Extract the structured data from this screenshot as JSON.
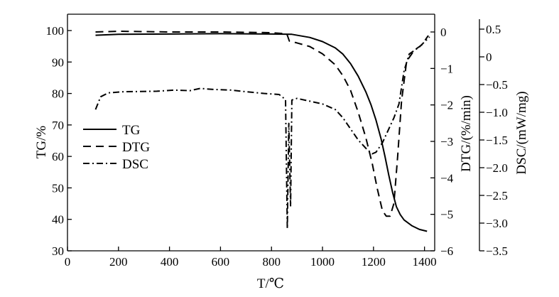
{
  "chart_data": {
    "type": "line",
    "title": "",
    "xlabel": "T/℃",
    "xlim": [
      0,
      1440
    ],
    "xticks": [
      0,
      200,
      400,
      600,
      800,
      1000,
      1200,
      1400
    ],
    "left_axis": {
      "label": "TG/%",
      "lim": [
        30,
        103
      ],
      "ticks": [
        30,
        40,
        50,
        60,
        70,
        80,
        90,
        100
      ]
    },
    "middle_axis": {
      "label": "DTG/(%/min)",
      "lim": [
        -6,
        0.5
      ],
      "ticks": [
        "0",
        "−1",
        "−2",
        "−3",
        "−4",
        "−5",
        "−6"
      ]
    },
    "right_axis": {
      "label": "DSC/(mW/mg)",
      "lim": [
        -3.5,
        0.7
      ],
      "ticks": [
        "0.5",
        "0",
        "−0.5",
        "−1.0",
        "−1.5",
        "−2.0",
        "−2.5",
        "−3.0",
        "−3.5"
      ]
    },
    "legend": {
      "placement": "left-middle"
    },
    "series": [
      {
        "name": "TG",
        "axis": "left",
        "dash": "solid",
        "points": [
          [
            110,
            98.5
          ],
          [
            200,
            98.8
          ],
          [
            400,
            98.9
          ],
          [
            600,
            99.0
          ],
          [
            800,
            98.9
          ],
          [
            880,
            98.8
          ],
          [
            950,
            97.8
          ],
          [
            1000,
            96.5
          ],
          [
            1050,
            94.5
          ],
          [
            1080,
            92.5
          ],
          [
            1110,
            89.5
          ],
          [
            1140,
            85.5
          ],
          [
            1170,
            80.5
          ],
          [
            1190,
            76.5
          ],
          [
            1210,
            71.5
          ],
          [
            1230,
            65.5
          ],
          [
            1245,
            60.0
          ],
          [
            1260,
            54.0
          ],
          [
            1275,
            48.5
          ],
          [
            1290,
            44.0
          ],
          [
            1305,
            41.5
          ],
          [
            1320,
            39.8
          ],
          [
            1350,
            38.0
          ],
          [
            1380,
            36.8
          ],
          [
            1410,
            36.2
          ]
        ]
      },
      {
        "name": "DTG",
        "axis": "middle",
        "dash": "dashed",
        "points": [
          [
            110,
            0.0
          ],
          [
            200,
            0.02
          ],
          [
            400,
            0.0
          ],
          [
            600,
            0.0
          ],
          [
            800,
            -0.02
          ],
          [
            860,
            -0.05
          ],
          [
            870,
            -0.25
          ],
          [
            900,
            -0.3
          ],
          [
            950,
            -0.4
          ],
          [
            1000,
            -0.6
          ],
          [
            1050,
            -0.9
          ],
          [
            1080,
            -1.2
          ],
          [
            1110,
            -1.6
          ],
          [
            1140,
            -2.2
          ],
          [
            1170,
            -2.9
          ],
          [
            1195,
            -3.6
          ],
          [
            1215,
            -4.3
          ],
          [
            1235,
            -4.9
          ],
          [
            1250,
            -5.05
          ],
          [
            1265,
            -5.05
          ],
          [
            1280,
            -4.7
          ],
          [
            1295,
            -3.4
          ],
          [
            1310,
            -1.9
          ],
          [
            1330,
            -0.8
          ],
          [
            1360,
            -0.5
          ],
          [
            1390,
            -0.35
          ],
          [
            1415,
            -0.1
          ]
        ]
      },
      {
        "name": "DSC",
        "axis": "right",
        "dash": "dashdot",
        "points": [
          [
            110,
            -0.95
          ],
          [
            130,
            -0.72
          ],
          [
            160,
            -0.65
          ],
          [
            220,
            -0.63
          ],
          [
            350,
            -0.62
          ],
          [
            420,
            -0.6
          ],
          [
            480,
            -0.61
          ],
          [
            520,
            -0.57
          ],
          [
            580,
            -0.59
          ],
          [
            640,
            -0.6
          ],
          [
            700,
            -0.63
          ],
          [
            770,
            -0.66
          ],
          [
            830,
            -0.68
          ],
          [
            855,
            -0.77
          ],
          [
            862,
            -3.1
          ],
          [
            868,
            -1.2
          ],
          [
            875,
            -2.7
          ],
          [
            880,
            -0.78
          ],
          [
            900,
            -0.75
          ],
          [
            950,
            -0.8
          ],
          [
            1000,
            -0.85
          ],
          [
            1050,
            -0.95
          ],
          [
            1080,
            -1.1
          ],
          [
            1110,
            -1.3
          ],
          [
            1140,
            -1.5
          ],
          [
            1170,
            -1.65
          ],
          [
            1195,
            -1.75
          ],
          [
            1210,
            -1.72
          ],
          [
            1235,
            -1.55
          ],
          [
            1255,
            -1.35
          ],
          [
            1280,
            -1.1
          ],
          [
            1300,
            -0.85
          ],
          [
            1320,
            -0.25
          ],
          [
            1340,
            0.05
          ],
          [
            1380,
            0.18
          ],
          [
            1420,
            0.36
          ]
        ]
      }
    ]
  }
}
